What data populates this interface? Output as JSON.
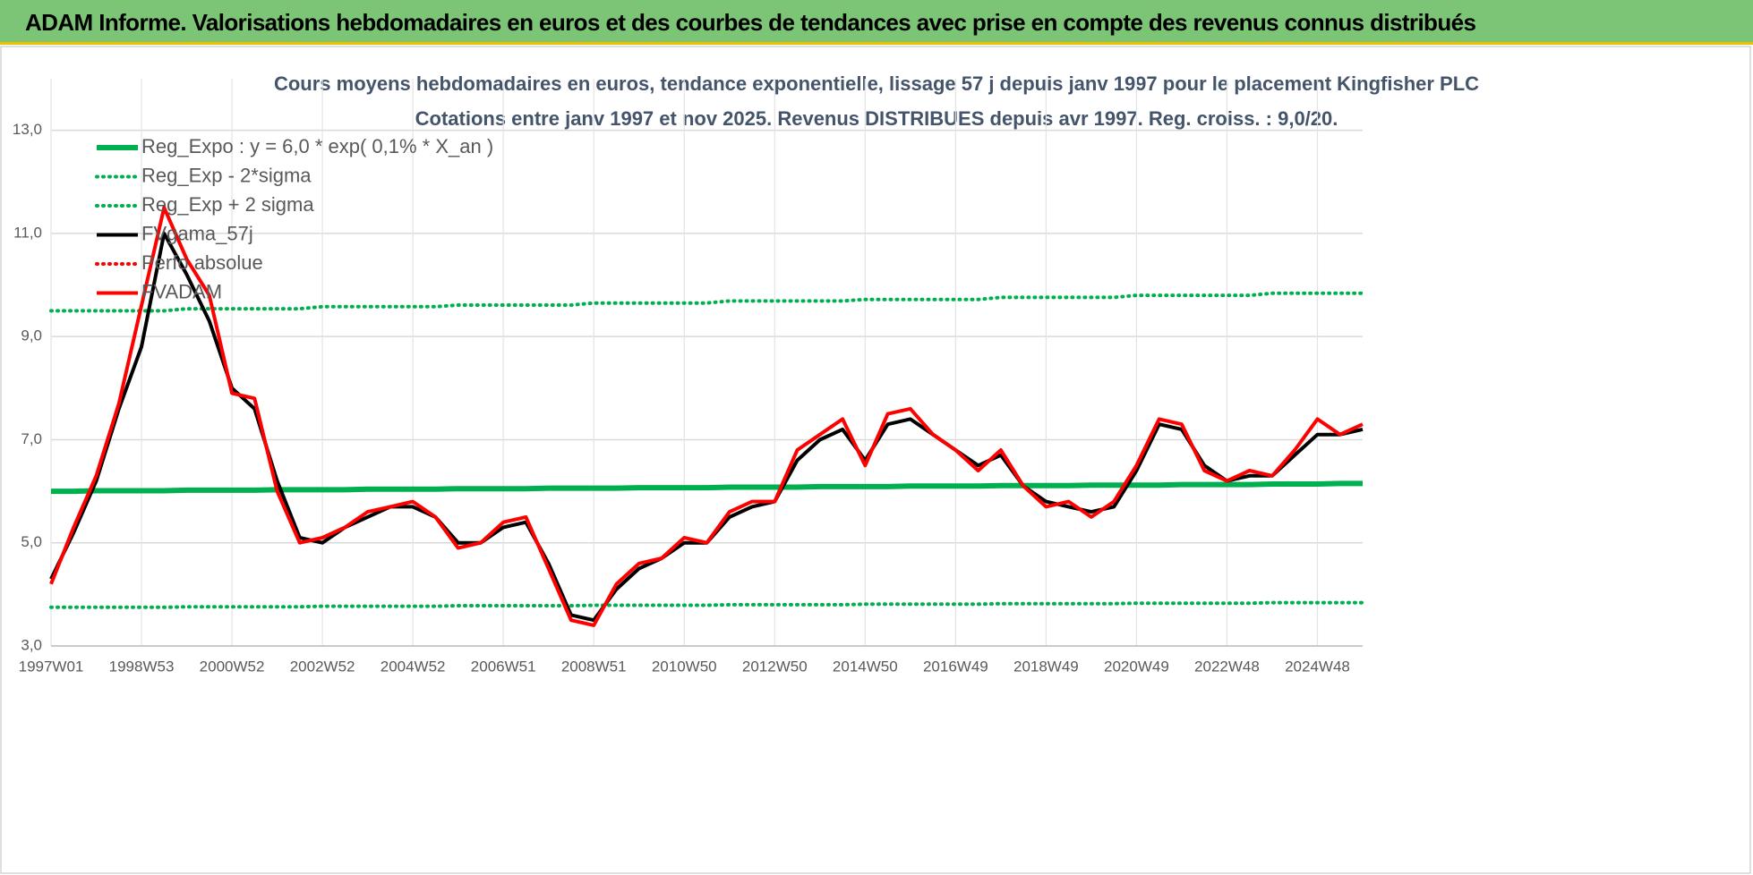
{
  "banner": "ADAM Informe. Valorisations hebdomadaires en euros et des courbes de tendances avec prise en compte des revenus connus distribués",
  "chart_data": {
    "type": "line",
    "title": "Cours moyens hebdomadaires en euros, tendance exponentielle, lissage 57 j depuis janv 1997 pour le placement Kingfisher PLC",
    "subtitle": "Cotations entre janv 1997 et nov 2025. Revenus DISTRIBUES depuis avr 1997. Reg. croiss. : 9,0/20.",
    "categories": [
      "1997W01",
      null,
      null,
      null,
      "1998W53",
      null,
      null,
      null,
      "2000W52",
      null,
      null,
      null,
      "2002W52",
      null,
      null,
      null,
      "2004W52",
      null,
      null,
      null,
      "2006W51",
      null,
      null,
      null,
      "2008W51",
      null,
      null,
      null,
      "2010W50",
      null,
      null,
      null,
      "2012W50",
      null,
      null,
      null,
      "2014W50",
      null,
      null,
      null,
      "2016W49",
      null,
      null,
      null,
      "2018W49",
      null,
      null,
      null,
      "2020W49",
      null,
      null,
      null,
      "2022W48",
      null,
      null,
      null,
      "2024W48",
      null,
      null
    ],
    "ylim": [
      3,
      14
    ],
    "yticks": [
      {
        "value": 3,
        "label": "3,0"
      },
      {
        "value": 5,
        "label": "5,0"
      },
      {
        "value": 7,
        "label": "7,0"
      },
      {
        "value": 9,
        "label": "9,0"
      },
      {
        "value": 11,
        "label": "11,0"
      },
      {
        "value": 13,
        "label": "13,0"
      }
    ],
    "grid": true,
    "legend": "upper left",
    "series": [
      {
        "name": "Reg_Expo : y = 6,0 * exp( 0,1% *  X_an )",
        "color": "#00b050",
        "style": "solid",
        "values": [
          6.0,
          6.0,
          6.01,
          6.01,
          6.01,
          6.01,
          6.02,
          6.02,
          6.02,
          6.02,
          6.03,
          6.03,
          6.03,
          6.03,
          6.04,
          6.04,
          6.04,
          6.04,
          6.05,
          6.05,
          6.05,
          6.05,
          6.06,
          6.06,
          6.06,
          6.06,
          6.07,
          6.07,
          6.07,
          6.07,
          6.08,
          6.08,
          6.08,
          6.08,
          6.09,
          6.09,
          6.09,
          6.09,
          6.1,
          6.1,
          6.1,
          6.1,
          6.11,
          6.11,
          6.11,
          6.11,
          6.12,
          6.12,
          6.12,
          6.12,
          6.13,
          6.13,
          6.13,
          6.13,
          6.14,
          6.14,
          6.14,
          6.15,
          6.15
        ]
      },
      {
        "name": "Reg_Exp - 2*sigma",
        "color": "#00b050",
        "style": "dotted",
        "values": [
          3.75,
          3.75,
          3.75,
          3.75,
          3.75,
          3.75,
          3.76,
          3.76,
          3.76,
          3.76,
          3.76,
          3.76,
          3.77,
          3.77,
          3.77,
          3.77,
          3.77,
          3.77,
          3.78,
          3.78,
          3.78,
          3.78,
          3.78,
          3.78,
          3.79,
          3.79,
          3.79,
          3.79,
          3.79,
          3.79,
          3.8,
          3.8,
          3.8,
          3.8,
          3.8,
          3.8,
          3.81,
          3.81,
          3.81,
          3.81,
          3.81,
          3.81,
          3.82,
          3.82,
          3.82,
          3.82,
          3.82,
          3.82,
          3.83,
          3.83,
          3.83,
          3.83,
          3.83,
          3.83,
          3.84,
          3.84,
          3.84,
          3.84,
          3.84
        ]
      },
      {
        "name": "Reg_Exp + 2 sigma",
        "color": "#00b050",
        "style": "dotted",
        "values": [
          9.5,
          9.5,
          9.5,
          9.5,
          9.5,
          9.5,
          9.54,
          9.54,
          9.54,
          9.54,
          9.54,
          9.54,
          9.58,
          9.58,
          9.58,
          9.58,
          9.58,
          9.58,
          9.61,
          9.61,
          9.61,
          9.61,
          9.61,
          9.61,
          9.65,
          9.65,
          9.65,
          9.65,
          9.65,
          9.65,
          9.69,
          9.69,
          9.69,
          9.69,
          9.69,
          9.69,
          9.72,
          9.72,
          9.72,
          9.72,
          9.72,
          9.72,
          9.76,
          9.76,
          9.76,
          9.76,
          9.76,
          9.76,
          9.8,
          9.8,
          9.8,
          9.8,
          9.8,
          9.8,
          9.84,
          9.84,
          9.84,
          9.84,
          9.84
        ]
      },
      {
        "name": "FVgama_57j",
        "color": "#000000",
        "style": "solid",
        "values": [
          4.3,
          5.2,
          6.2,
          7.6,
          8.8,
          11.0,
          10.2,
          9.3,
          8.0,
          7.6,
          6.2,
          5.1,
          5.0,
          5.3,
          5.5,
          5.7,
          5.7,
          5.5,
          5.0,
          5.0,
          5.3,
          5.4,
          4.6,
          3.6,
          3.5,
          4.1,
          4.5,
          4.7,
          5.0,
          5.0,
          5.5,
          5.7,
          5.8,
          6.6,
          7.0,
          7.2,
          6.6,
          7.3,
          7.4,
          7.1,
          6.8,
          6.5,
          6.7,
          6.1,
          5.8,
          5.7,
          5.6,
          5.7,
          6.4,
          7.3,
          7.2,
          6.5,
          6.2,
          6.3,
          6.3,
          6.7,
          7.1,
          7.1,
          7.2
        ]
      },
      {
        "name": "Perfo absolue",
        "color": "#ff0000",
        "style": "dotted"
      },
      {
        "name": "FVADAM",
        "color": "#ff0000",
        "style": "solid",
        "values": [
          4.2,
          5.3,
          6.3,
          7.7,
          9.6,
          11.5,
          10.5,
          9.8,
          7.9,
          7.8,
          6.0,
          5.0,
          5.1,
          5.3,
          5.6,
          5.7,
          5.8,
          5.5,
          4.9,
          5.0,
          5.4,
          5.5,
          4.5,
          3.5,
          3.4,
          4.2,
          4.6,
          4.7,
          5.1,
          5.0,
          5.6,
          5.8,
          5.8,
          6.8,
          7.1,
          7.4,
          6.5,
          7.5,
          7.6,
          7.1,
          6.8,
          6.4,
          6.8,
          6.1,
          5.7,
          5.8,
          5.5,
          5.8,
          6.5,
          7.4,
          7.3,
          6.4,
          6.2,
          6.4,
          6.3,
          6.8,
          7.4,
          7.1,
          7.3
        ]
      }
    ]
  }
}
